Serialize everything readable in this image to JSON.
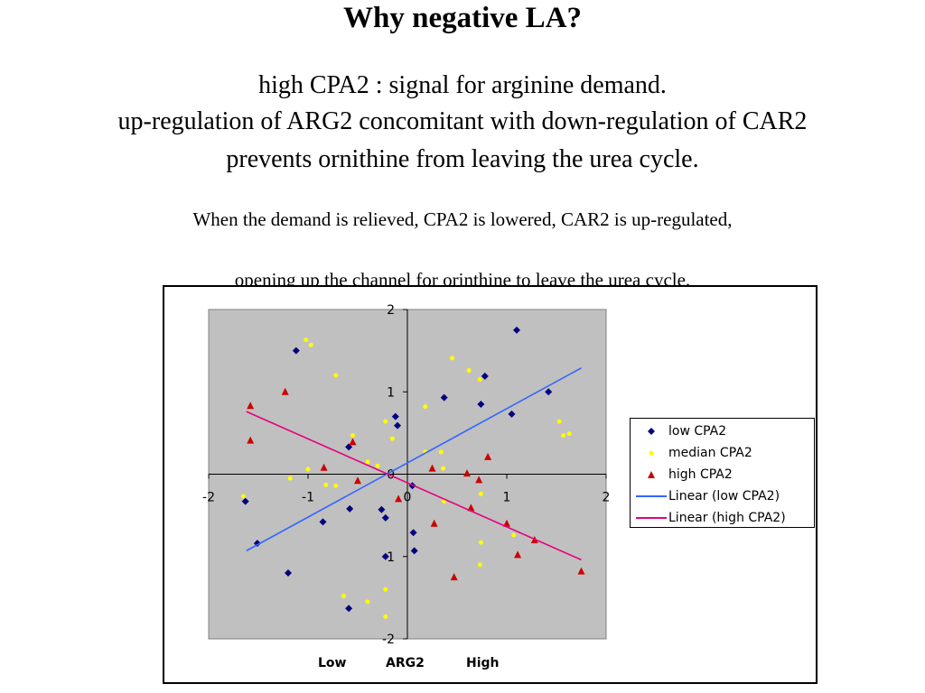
{
  "slide": {
    "title": "Why negative LA?",
    "lines": [
      "high CPA2  :  signal for arginine demand.",
      "up-regulation of ARG2  concomitant  with down-regulation of CAR2",
      "prevents ornithine from leaving the urea cycle."
    ],
    "notes": [
      "When the demand is relieved, CPA2 is lowered, CAR2 is up-regulated,",
      "opening  up the channel for  orinthine  to leave  the urea cycle."
    ]
  },
  "chart_data": {
    "type": "scatter",
    "xlim": [
      -2,
      2
    ],
    "ylim": [
      -2,
      2
    ],
    "xticks": [
      -2,
      -1,
      0,
      1,
      2
    ],
    "yticks": [
      2,
      1,
      0,
      -1,
      -2
    ],
    "plot_background": "#c0c0c0",
    "grid": false,
    "legend_position": "right",
    "axis_labels_below": [
      "Low",
      "ARG2",
      "High"
    ],
    "series": [
      {
        "name": "low CPA2",
        "marker": "diamond",
        "color": "#000080",
        "points": [
          [
            -1.63,
            -0.33
          ],
          [
            -1.51,
            -0.84
          ],
          [
            -1.2,
            -1.2
          ],
          [
            -1.12,
            1.5
          ],
          [
            -0.85,
            -0.58
          ],
          [
            -0.59,
            -1.63
          ],
          [
            -0.59,
            0.33
          ],
          [
            -0.58,
            -0.42
          ],
          [
            -0.26,
            -0.43
          ],
          [
            -0.22,
            -0.53
          ],
          [
            -0.22,
            -1.0
          ],
          [
            -0.1,
            0.59
          ],
          [
            -0.12,
            0.7
          ],
          [
            0.05,
            -0.14
          ],
          [
            0.06,
            -0.71
          ],
          [
            0.07,
            -0.93
          ],
          [
            0.37,
            0.93
          ],
          [
            0.74,
            0.85
          ],
          [
            0.78,
            1.19
          ],
          [
            1.05,
            0.73
          ],
          [
            1.1,
            1.75
          ],
          [
            1.42,
            1.0
          ]
        ]
      },
      {
        "name": "median CPA2",
        "marker": "dot",
        "color": "#ffff00",
        "points": [
          [
            -1.65,
            -0.27
          ],
          [
            -1.02,
            1.63
          ],
          [
            -0.97,
            1.57
          ],
          [
            -0.72,
            1.2
          ],
          [
            -1.18,
            -0.05
          ],
          [
            -1.0,
            0.06
          ],
          [
            -0.82,
            -0.13
          ],
          [
            -0.72,
            -0.14
          ],
          [
            -0.55,
            0.47
          ],
          [
            -0.4,
            0.15
          ],
          [
            -0.3,
            0.1
          ],
          [
            -0.22,
            0.64
          ],
          [
            -0.15,
            0.43
          ],
          [
            -0.64,
            -1.48
          ],
          [
            -0.4,
            -1.55
          ],
          [
            -0.22,
            -1.4
          ],
          [
            -0.22,
            -1.73
          ],
          [
            0.18,
            0.27
          ],
          [
            0.18,
            0.82
          ],
          [
            0.34,
            0.27
          ],
          [
            0.36,
            0.07
          ],
          [
            0.37,
            -0.33
          ],
          [
            0.45,
            1.41
          ],
          [
            0.62,
            1.26
          ],
          [
            0.73,
            1.15
          ],
          [
            0.74,
            -0.24
          ],
          [
            0.74,
            -0.83
          ],
          [
            0.73,
            -1.1
          ],
          [
            1.07,
            -0.74
          ],
          [
            1.53,
            0.64
          ],
          [
            1.57,
            0.47
          ],
          [
            1.63,
            0.49
          ]
        ]
      },
      {
        "name": "high CPA2",
        "marker": "triangle",
        "color": "#cc0000",
        "points": [
          [
            -1.58,
            0.83
          ],
          [
            -1.58,
            0.41
          ],
          [
            -1.23,
            1.0
          ],
          [
            -0.84,
            0.08
          ],
          [
            -0.55,
            0.39
          ],
          [
            -0.5,
            -0.08
          ],
          [
            -0.09,
            -0.3
          ],
          [
            0.25,
            0.07
          ],
          [
            0.27,
            -0.6
          ],
          [
            0.47,
            -1.25
          ],
          [
            0.6,
            0.01
          ],
          [
            0.64,
            -0.41
          ],
          [
            0.72,
            -0.07
          ],
          [
            0.81,
            0.21
          ],
          [
            1.0,
            -0.6
          ],
          [
            1.11,
            -0.98
          ],
          [
            1.28,
            -0.8
          ],
          [
            1.75,
            -1.18
          ]
        ]
      }
    ],
    "trendlines": [
      {
        "name": "Linear (low CPA2)",
        "color": "#3366ff",
        "x_range": [
          -1.62,
          1.75
        ],
        "y_range": [
          -0.93,
          1.29
        ]
      },
      {
        "name": "Linear (high CPA2)",
        "color": "#e6007e",
        "x_range": [
          -1.62,
          1.75
        ],
        "y_range": [
          0.76,
          -1.04
        ]
      }
    ]
  }
}
